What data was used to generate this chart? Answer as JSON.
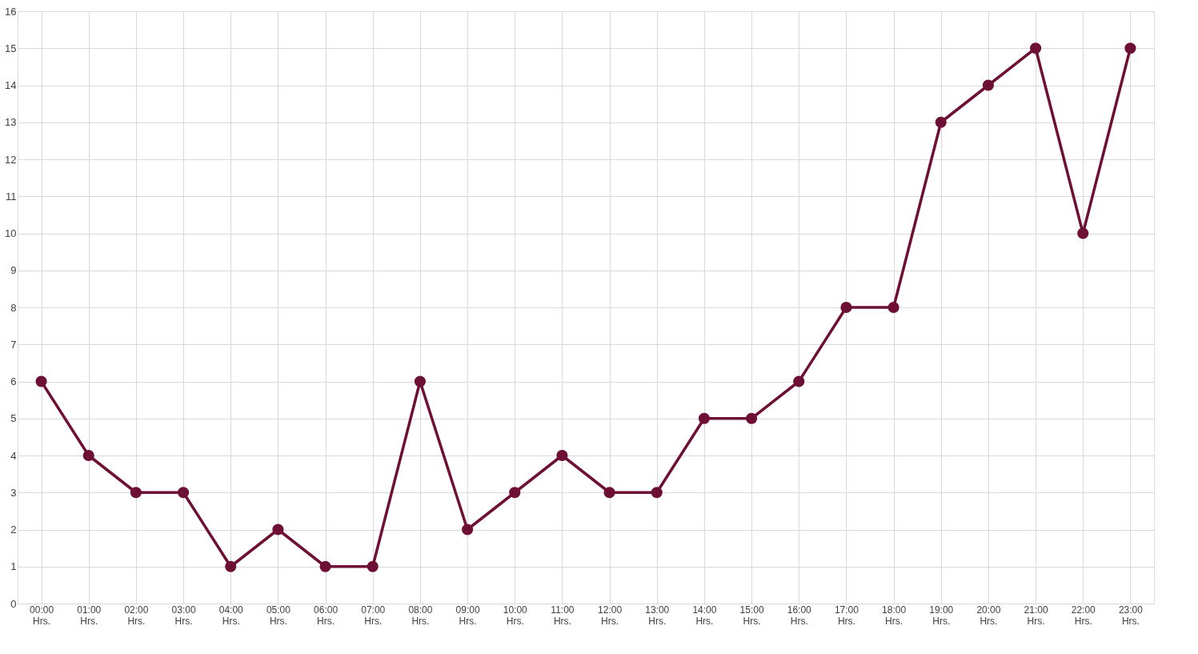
{
  "chart_data": {
    "type": "line",
    "categories": [
      "00:00 Hrs.",
      "01:00 Hrs.",
      "02:00 Hrs.",
      "03:00 Hrs.",
      "04:00 Hrs.",
      "05:00 Hrs.",
      "06:00 Hrs.",
      "07:00 Hrs.",
      "08:00 Hrs.",
      "09:00 Hrs.",
      "10:00 Hrs.",
      "11:00 Hrs.",
      "12:00 Hrs.",
      "13:00 Hrs.",
      "14:00 Hrs.",
      "15:00 Hrs.",
      "16:00 Hrs.",
      "17:00 Hrs.",
      "18:00 Hrs.",
      "19:00 Hrs.",
      "20:00 Hrs.",
      "21:00 Hrs.",
      "22:00 Hrs.",
      "23:00 Hrs."
    ],
    "series": [
      {
        "color": "#6e0f35",
        "values": [
          6,
          4,
          3,
          3,
          1,
          2,
          1,
          1,
          6,
          2,
          3,
          4,
          3,
          3,
          5,
          5,
          6,
          8,
          8,
          13,
          14,
          15,
          10,
          15
        ]
      }
    ],
    "ylim": [
      0,
      16
    ],
    "yticks": [
      0,
      1,
      2,
      3,
      4,
      5,
      6,
      7,
      8,
      9,
      10,
      11,
      12,
      13,
      14,
      15,
      16
    ],
    "grid": true,
    "marker": "circle",
    "line_style": "solid",
    "legend": false
  }
}
